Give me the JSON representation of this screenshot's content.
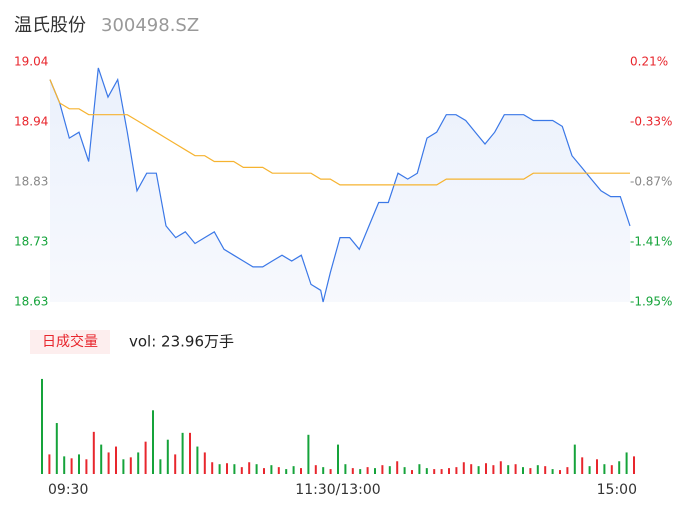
{
  "header": {
    "name": "温氏股份",
    "code": "300498.SZ"
  },
  "chart_data": [
    {
      "type": "line",
      "x": [
        0,
        4,
        8,
        12,
        16,
        20,
        24,
        28,
        32,
        36,
        40,
        44,
        48,
        52,
        56,
        60,
        64,
        68,
        72,
        76,
        80,
        84,
        88,
        92,
        96,
        100,
        104,
        108,
        112,
        113,
        116,
        120,
        124,
        128,
        132,
        136,
        140,
        144,
        148,
        152,
        156,
        160,
        164,
        168,
        172,
        176,
        180,
        184,
        188,
        192,
        196,
        200,
        204,
        208,
        212,
        216,
        220,
        224,
        228,
        232,
        236,
        240
      ],
      "xlim": [
        0,
        240
      ],
      "ylim": [
        18.63,
        19.04
      ],
      "yticks": [
        19.04,
        {
          "value": 18.9375,
          "label": "18.94"
        },
        {
          "value": 18.835,
          "label": "18.83"
        },
        {
          "value": 18.7325,
          "label": "18.73"
        },
        18.63
      ],
      "y2lim": [
        -1.95,
        0.21
      ],
      "y2ticks": [
        {
          "value": 0.21,
          "label": "0.21%"
        },
        {
          "value": -0.33,
          "label": "-0.33%"
        },
        {
          "value": -0.87,
          "label": "-0.87%"
        },
        {
          "value": -1.41,
          "label": "-1.41%"
        },
        {
          "value": -1.95,
          "label": "-1.95%"
        }
      ],
      "up_color": "#e8262d",
      "down_color": "#15a33a",
      "flat_color": "#888888",
      "series": [
        {
          "color": "#3b78e7",
          "fill": true,
          "values": [
            19.01,
            18.97,
            18.91,
            18.92,
            18.87,
            19.03,
            18.98,
            19.01,
            18.92,
            18.82,
            18.85,
            18.85,
            18.76,
            18.74,
            18.75,
            18.73,
            18.74,
            18.75,
            18.72,
            18.71,
            18.7,
            18.69,
            18.69,
            18.7,
            18.71,
            18.7,
            18.71,
            18.66,
            18.65,
            18.63,
            18.68,
            18.74,
            18.74,
            18.72,
            18.76,
            18.8,
            18.8,
            18.85,
            18.84,
            18.85,
            18.91,
            18.92,
            18.95,
            18.95,
            18.94,
            18.92,
            18.9,
            18.92,
            18.95,
            18.95,
            18.95,
            18.94,
            18.94,
            18.94,
            18.93,
            18.88,
            18.86,
            18.84,
            18.82,
            18.81,
            18.81,
            18.76
          ]
        },
        {
          "color": "#f6b330",
          "fill": false,
          "values": [
            19.01,
            18.97,
            18.96,
            18.96,
            18.95,
            18.95,
            18.95,
            18.95,
            18.95,
            18.94,
            18.93,
            18.92,
            18.91,
            18.9,
            18.89,
            18.88,
            18.88,
            18.87,
            18.87,
            18.87,
            18.86,
            18.86,
            18.86,
            18.85,
            18.85,
            18.85,
            18.85,
            18.85,
            18.84,
            18.84,
            18.84,
            18.83,
            18.83,
            18.83,
            18.83,
            18.83,
            18.83,
            18.83,
            18.83,
            18.83,
            18.83,
            18.83,
            18.84,
            18.84,
            18.84,
            18.84,
            18.84,
            18.84,
            18.84,
            18.84,
            18.84,
            18.85,
            18.85,
            18.85,
            18.85,
            18.85,
            18.85,
            18.85,
            18.85,
            18.85,
            18.85,
            18.85
          ]
        }
      ]
    },
    {
      "type": "bar",
      "title": "日成交量",
      "subtitle": "vol: 23.96万手",
      "x": [
        0,
        3,
        6,
        9,
        12,
        15,
        18,
        21,
        24,
        27,
        30,
        33,
        36,
        39,
        42,
        45,
        48,
        51,
        54,
        57,
        60,
        63,
        66,
        69,
        72,
        75,
        78,
        81,
        84,
        87,
        90,
        93,
        96,
        99,
        102,
        105,
        108,
        111,
        114,
        117,
        120,
        123,
        126,
        129,
        132,
        135,
        138,
        141,
        144,
        147,
        150,
        153,
        156,
        159,
        162,
        165,
        168,
        171,
        174,
        177,
        180,
        183,
        186,
        189,
        192,
        195,
        198,
        201,
        204,
        207,
        210,
        213,
        216,
        219,
        222,
        225,
        228,
        231,
        234,
        237,
        240
      ],
      "xlim": [
        0,
        240
      ],
      "xticks": [
        {
          "value": 0,
          "label": "09:30"
        },
        {
          "value": 120,
          "label": "11:30/13:00"
        },
        {
          "value": 240,
          "label": "15:00"
        }
      ],
      "ylim": [
        0,
        10000
      ],
      "values": [
        9700,
        2000,
        5200,
        1800,
        1600,
        2000,
        1500,
        4300,
        3000,
        2200,
        2800,
        1500,
        1700,
        2200,
        3300,
        6500,
        1500,
        3500,
        2000,
        4200,
        4200,
        2800,
        2200,
        1200,
        1000,
        1100,
        1000,
        700,
        1200,
        1000,
        600,
        900,
        700,
        500,
        800,
        600,
        4000,
        900,
        700,
        500,
        3000,
        1000,
        600,
        500,
        700,
        600,
        900,
        800,
        1300,
        700,
        400,
        1000,
        600,
        500,
        500,
        600,
        700,
        1200,
        1000,
        800,
        1100,
        900,
        1300,
        900,
        1000,
        700,
        600,
        900,
        800,
        500,
        400,
        700,
        3000,
        1700,
        800,
        1500,
        1000,
        900,
        1300,
        2200,
        1800
      ],
      "colors": [
        "#15a33a",
        "#e8262d",
        "#15a33a",
        "#15a33a",
        "#e8262d",
        "#15a33a",
        "#e8262d",
        "#e8262d",
        "#15a33a",
        "#e8262d",
        "#e8262d",
        "#15a33a",
        "#e8262d",
        "#15a33a",
        "#e8262d",
        "#15a33a",
        "#15a33a",
        "#15a33a",
        "#e8262d",
        "#15a33a",
        "#e8262d",
        "#15a33a",
        "#e8262d",
        "#e8262d",
        "#15a33a",
        "#e8262d",
        "#15a33a",
        "#e8262d",
        "#e8262d",
        "#15a33a",
        "#e8262d",
        "#15a33a",
        "#e8262d",
        "#15a33a",
        "#15a33a",
        "#e8262d",
        "#15a33a",
        "#e8262d",
        "#15a33a",
        "#e8262d",
        "#15a33a",
        "#15a33a",
        "#e8262d",
        "#15a33a",
        "#e8262d",
        "#15a33a",
        "#e8262d",
        "#15a33a",
        "#e8262d",
        "#15a33a",
        "#e8262d",
        "#15a33a",
        "#15a33a",
        "#e8262d",
        "#e8262d",
        "#e8262d",
        "#e8262d",
        "#e8262d",
        "#e8262d",
        "#15a33a",
        "#e8262d",
        "#e8262d",
        "#e8262d",
        "#15a33a",
        "#e8262d",
        "#15a33a",
        "#e8262d",
        "#15a33a",
        "#e8262d",
        "#15a33a",
        "#e8262d",
        "#e8262d",
        "#15a33a",
        "#e8262d",
        "#15a33a",
        "#e8262d",
        "#15a33a",
        "#e8262d",
        "#15a33a",
        "#15a33a",
        "#e8262d"
      ]
    }
  ]
}
